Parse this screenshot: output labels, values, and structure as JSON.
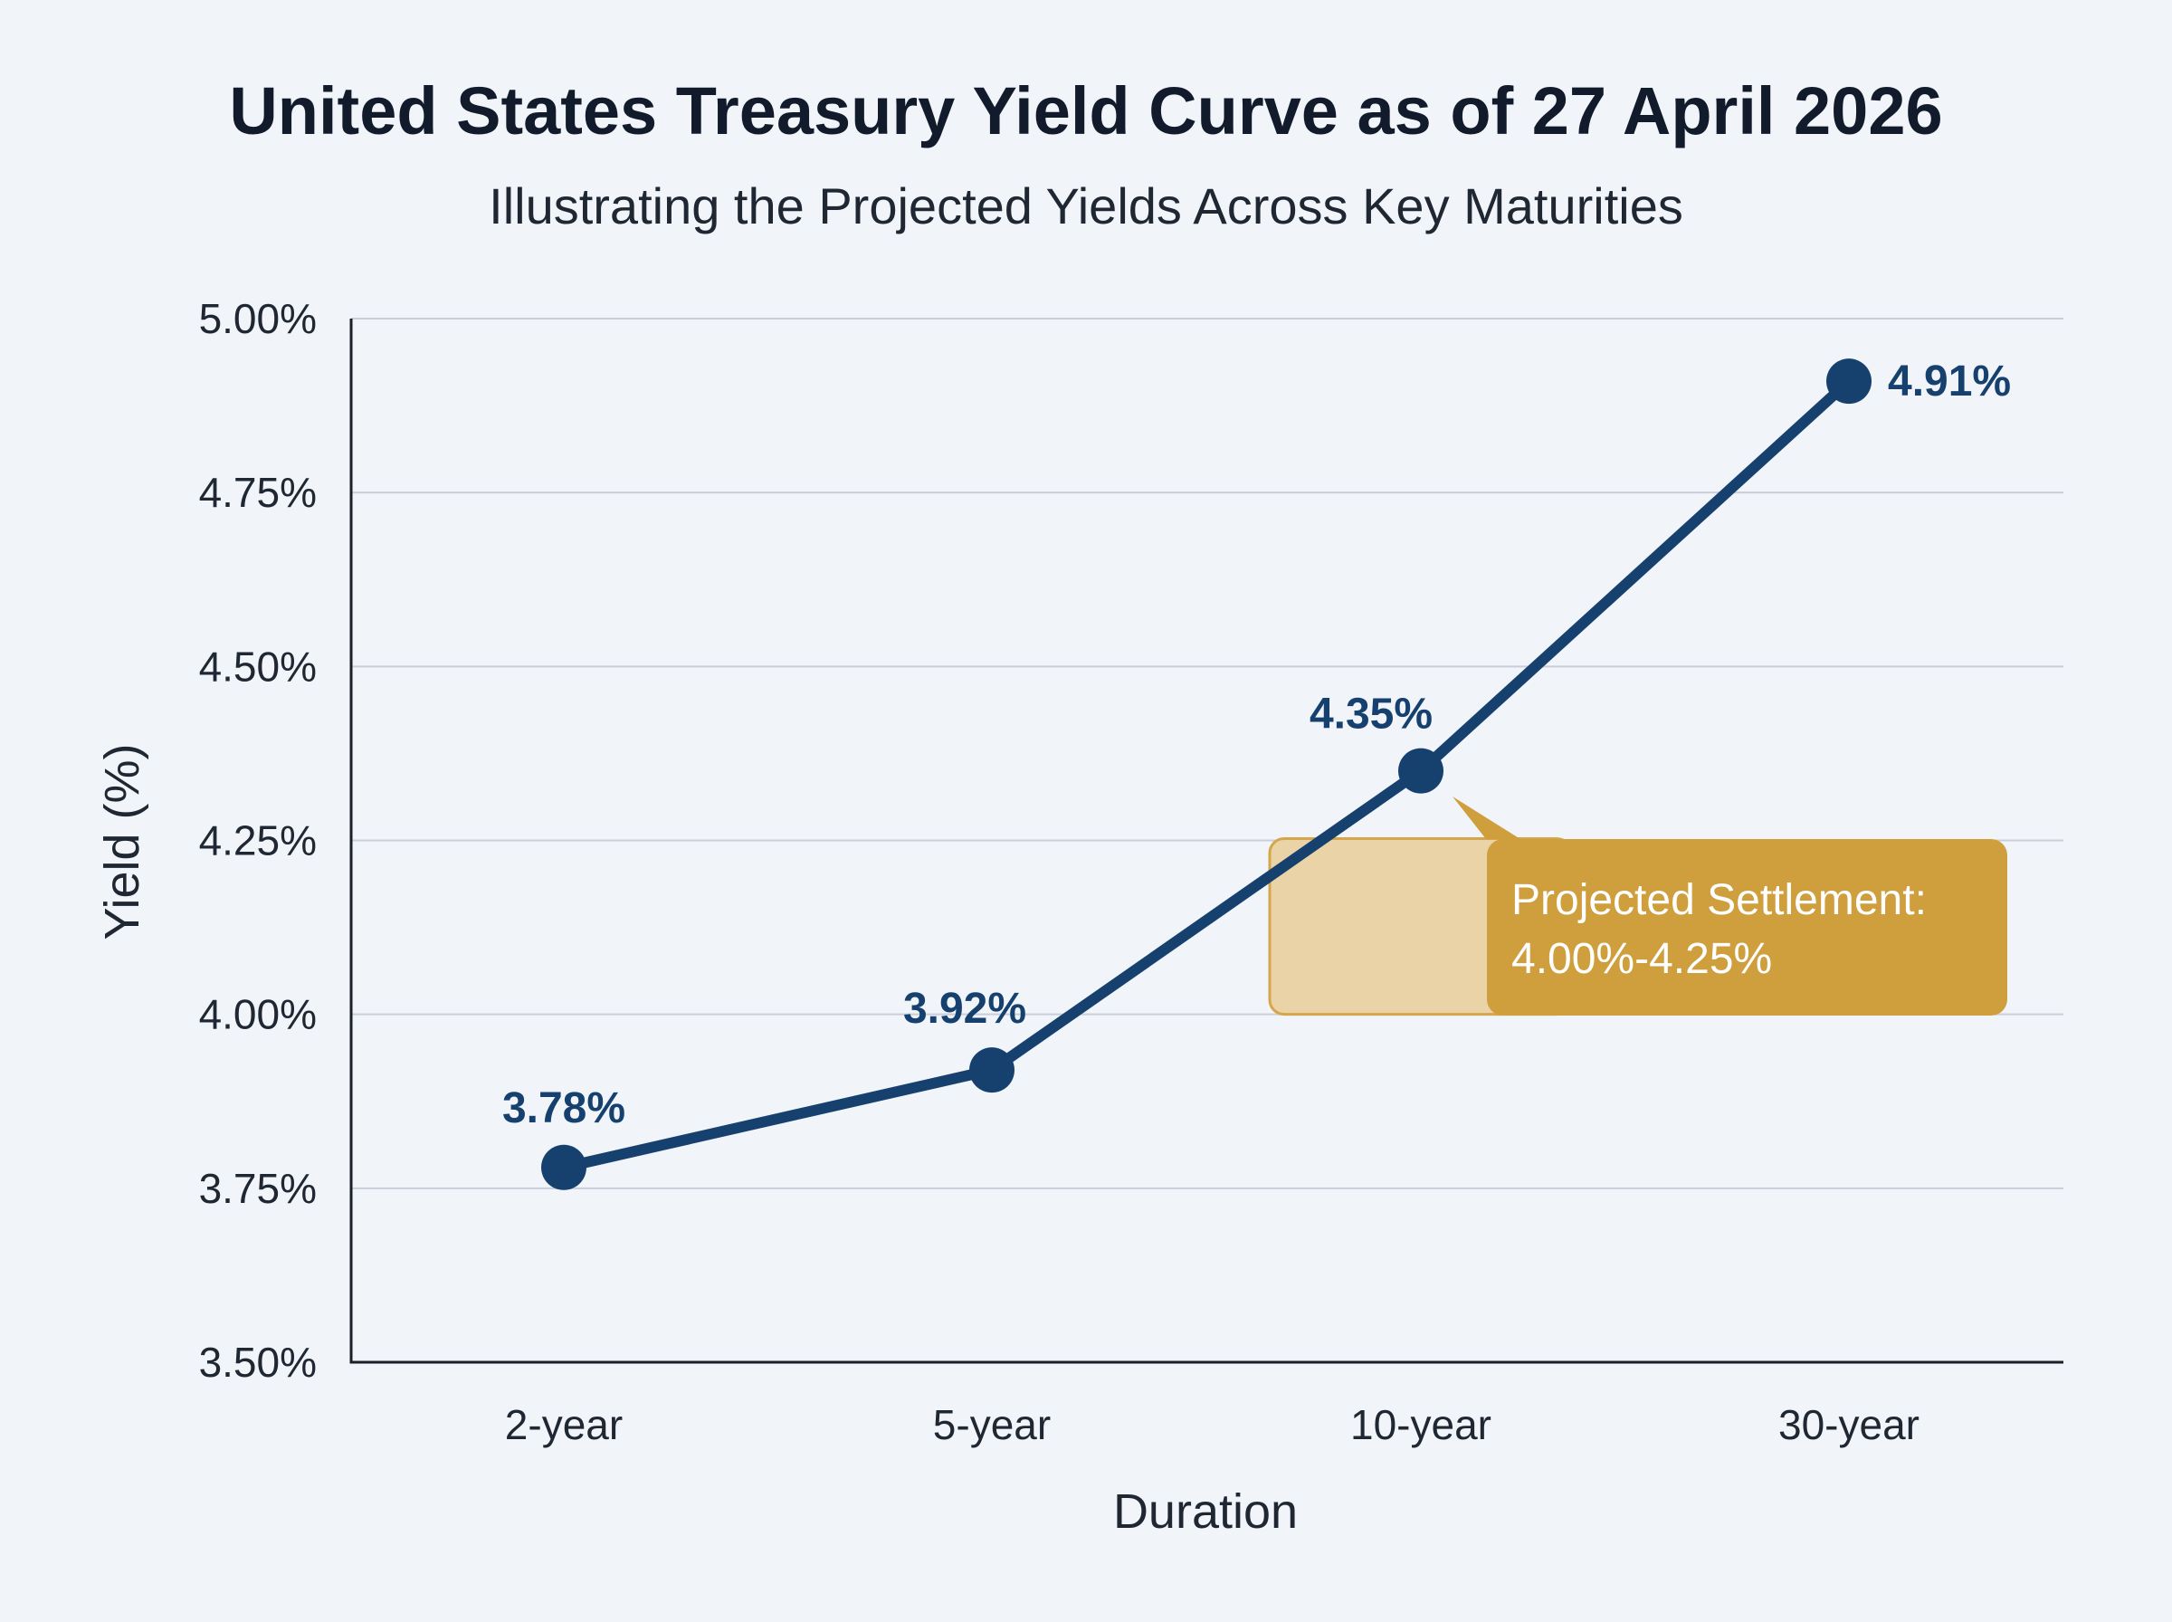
{
  "chart_data": {
    "type": "line",
    "title": "United States Treasury Yield Curve as of 27 April 2026",
    "subtitle": "Illustrating the Projected Yields Across Key Maturities",
    "xlabel": "Duration",
    "ylabel": "Yield (%)",
    "categories": [
      "2-year",
      "5-year",
      "10-year",
      "30-year"
    ],
    "series": [
      {
        "values": [
          3.78,
          3.92,
          4.35,
          4.91
        ],
        "labels": [
          "3.78%",
          "3.92%",
          "4.35%",
          "4.91%"
        ],
        "color": "#16416f"
      }
    ],
    "ylim": [
      3.5,
      5.0
    ],
    "yticks": [
      3.5,
      3.75,
      4.0,
      4.25,
      4.5,
      4.75,
      5.0
    ],
    "ytick_labels": [
      "3.50%",
      "3.75%",
      "4.00%",
      "4.25%",
      "4.50%",
      "4.75%",
      "5.00%"
    ],
    "grid": true,
    "annotation": {
      "text_line1": "Projected Settlement:",
      "text_line2": "4.00%-4.25%",
      "y_range": [
        4.0,
        4.25
      ],
      "x_category": "10-year",
      "band_color": "#ead3a6",
      "box_color": "#cf9e3d"
    }
  }
}
